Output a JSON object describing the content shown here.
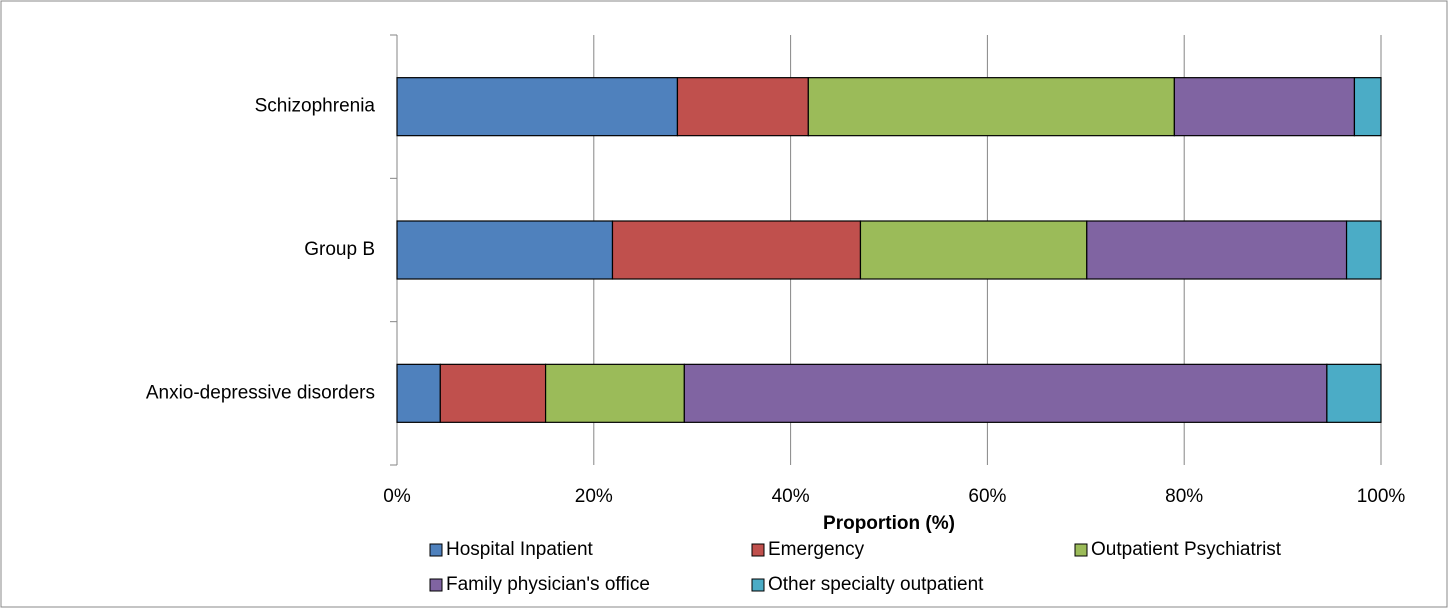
{
  "chart_data": {
    "type": "stacked-bar-horizontal",
    "x_label": "Proportion (%)",
    "categories": [
      "Schizophrenia",
      "Group B",
      "Anxio-depressive disorders"
    ],
    "series": [
      {
        "name": "Hospital Inpatient",
        "color": "#4f81bd",
        "values": [
          28.5,
          21.9,
          4.4
        ]
      },
      {
        "name": "Emergency",
        "color": "#c0504d",
        "values": [
          13.3,
          25.2,
          10.7
        ]
      },
      {
        "name": "Outpatient Psychiatrist",
        "color": "#9bbb59",
        "values": [
          37.2,
          23.0,
          14.1
        ]
      },
      {
        "name": "Family physician's office",
        "color": "#8064a2",
        "values": [
          18.3,
          26.4,
          65.3
        ]
      },
      {
        "name": "Other specialty outpatient",
        "color": "#4bacc6",
        "values": [
          2.7,
          3.5,
          5.5
        ]
      }
    ],
    "xlim": [
      0,
      100
    ],
    "xticks": [
      {
        "value": 0,
        "label": "0%"
      },
      {
        "value": 20,
        "label": "20%"
      },
      {
        "value": 40,
        "label": "40%"
      },
      {
        "value": 60,
        "label": "60%"
      },
      {
        "value": 80,
        "label": "80%"
      },
      {
        "value": 100,
        "label": "100%"
      }
    ],
    "grid": true
  }
}
